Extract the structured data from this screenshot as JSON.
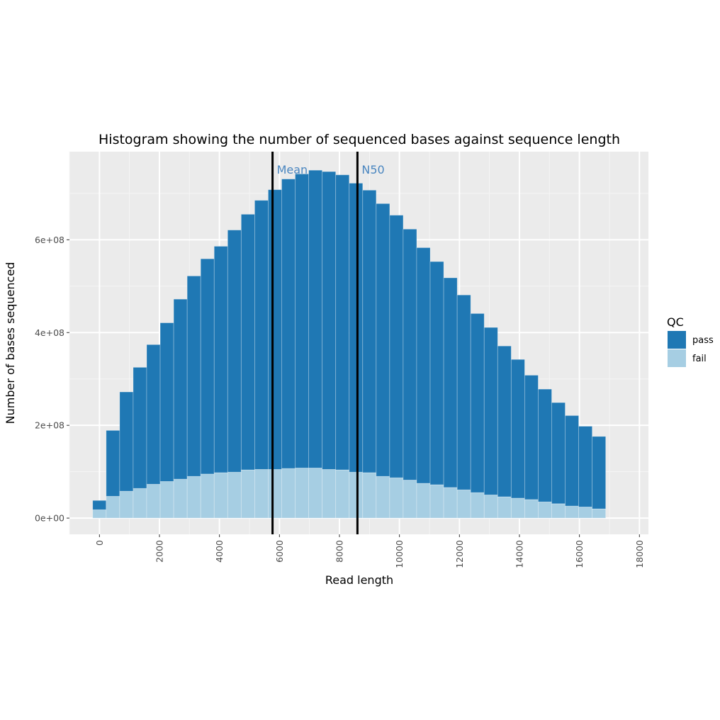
{
  "chart_data": {
    "type": "bar",
    "stacked": true,
    "title": "Histogram showing the number of sequenced bases against sequence length",
    "xlabel": "Read length",
    "ylabel": "Number of bases sequenced",
    "xlim": [
      -1000,
      18300
    ],
    "ylim": [
      -35000000.0,
      790000000.0
    ],
    "x_ticks": [
      0,
      2000,
      4000,
      6000,
      8000,
      10000,
      12000,
      14000,
      16000,
      18000
    ],
    "x_tick_labels": [
      "0",
      "2000",
      "4000",
      "6000",
      "8000",
      "10000",
      "12000",
      "14000",
      "16000",
      "18000"
    ],
    "y_ticks": [
      0,
      200000000,
      400000000,
      600000000
    ],
    "y_tick_labels": [
      "0e+00",
      "2e+08",
      "4e+08",
      "6e+08"
    ],
    "grid": true,
    "bin_width": 450,
    "x": [
      0,
      450,
      900,
      1350,
      1800,
      2250,
      2700,
      3150,
      3600,
      4050,
      4500,
      4950,
      5400,
      5850,
      6300,
      6750,
      7200,
      7650,
      8100,
      8550,
      9000,
      9450,
      9900,
      10350,
      10800,
      11250,
      11700,
      12150,
      12600,
      13050,
      13500,
      13950,
      14400,
      14850,
      15300,
      15750,
      16200,
      16650
    ],
    "series": [
      {
        "name": "fail",
        "color": "#a6cee3",
        "values": [
          18000000,
          47000000,
          58000000,
          64000000,
          73000000,
          79000000,
          84000000,
          90000000,
          95000000,
          98000000,
          99000000,
          104000000,
          105000000,
          105000000,
          107000000,
          108000000,
          108000000,
          105000000,
          104000000,
          99000000,
          98000000,
          90000000,
          87000000,
          82000000,
          75000000,
          72000000,
          66000000,
          61000000,
          55000000,
          50000000,
          46000000,
          43000000,
          40000000,
          35000000,
          31000000,
          26000000,
          24000000,
          20000000
        ]
      },
      {
        "name": "pass",
        "color": "#1f78b4",
        "values": [
          20000000,
          142000000,
          214000000,
          261000000,
          301000000,
          342000000,
          388000000,
          432000000,
          464000000,
          488000000,
          522000000,
          551000000,
          580000000,
          603000000,
          624000000,
          634000000,
          642000000,
          642000000,
          636000000,
          623000000,
          609000000,
          588000000,
          566000000,
          541000000,
          508000000,
          481000000,
          452000000,
          420000000,
          386000000,
          361000000,
          325000000,
          299000000,
          268000000,
          243000000,
          218000000,
          195000000,
          174000000,
          156000000
        ]
      }
    ],
    "vertical_lines": [
      {
        "label": "Mean",
        "x": 5770
      },
      {
        "label": "N50",
        "x": 8600
      }
    ],
    "legend": {
      "title": "QC",
      "position": "right",
      "entries": [
        {
          "label": "pass",
          "color": "#1f78b4"
        },
        {
          "label": "fail",
          "color": "#a6cee3"
        }
      ]
    }
  }
}
